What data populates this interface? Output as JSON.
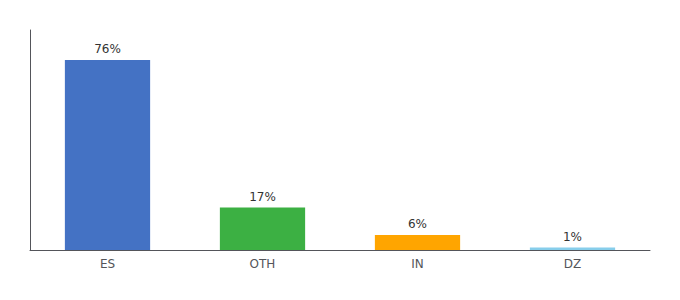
{
  "chart_data": {
    "type": "bar",
    "categories": [
      "ES",
      "OTH",
      "IN",
      "DZ"
    ],
    "values": [
      76,
      17,
      6,
      1
    ],
    "value_labels": [
      "76%",
      "17%",
      "6%",
      "1%"
    ],
    "colors": [
      "#4472C4",
      "#3CB043",
      "#FFA500",
      "#87CEEB"
    ],
    "ylim": [
      0,
      88
    ],
    "data_labels": true,
    "tick_labels": "x",
    "grid": false
  }
}
